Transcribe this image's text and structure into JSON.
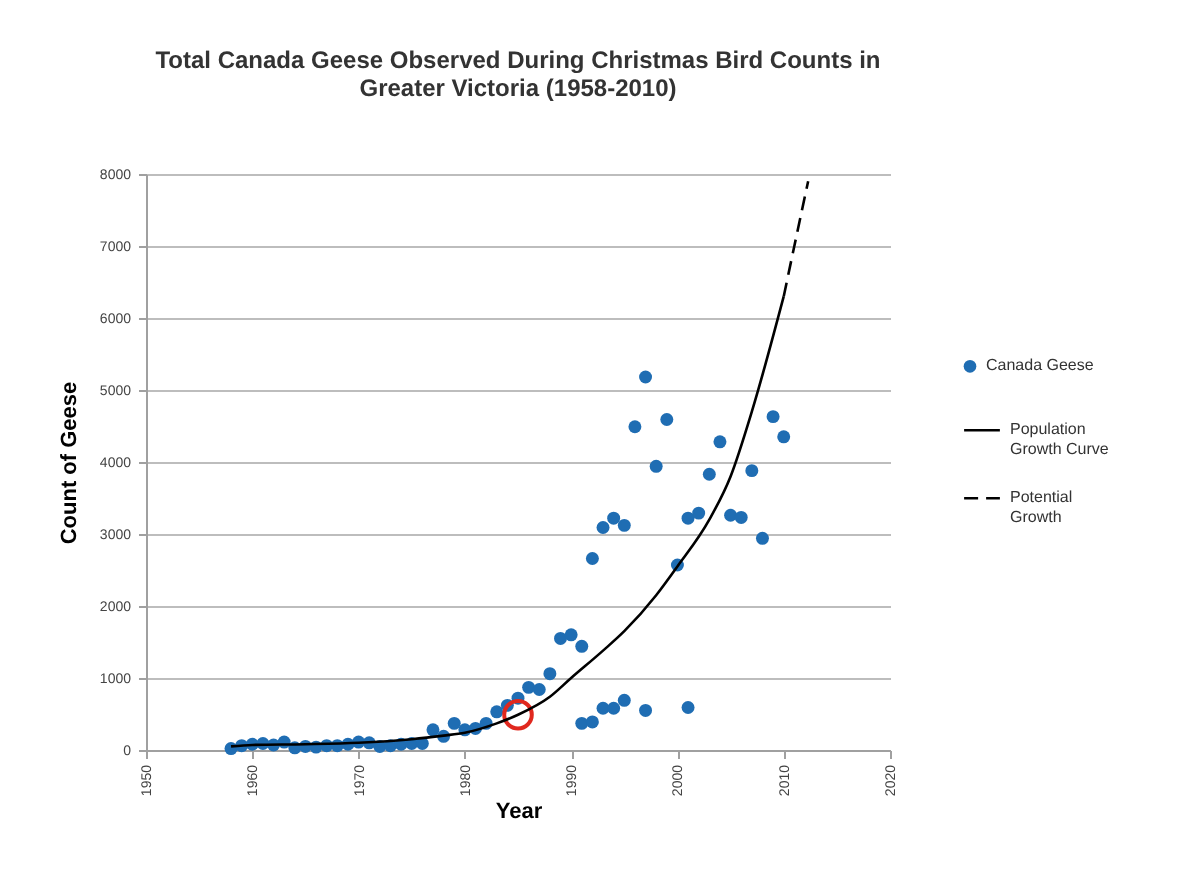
{
  "chart_data": {
    "type": "scatter",
    "title": "Total Canada Geese Observed During Christmas Bird Counts in Greater Victoria (1958-2010)",
    "xlabel": "Year",
    "ylabel": "Count of Geese",
    "xlim": [
      1950,
      2020
    ],
    "xticks": [
      1950,
      1960,
      1970,
      1980,
      1990,
      2000,
      2010,
      2020
    ],
    "ylim": [
      0,
      8000
    ],
    "yticks": [
      0,
      1000,
      2000,
      3000,
      4000,
      5000,
      6000,
      7000,
      8000
    ],
    "grid": "y",
    "legend": "right",
    "series": [
      {
        "name": "Canada Geese",
        "marker": "circle",
        "color": "#1f6db3",
        "x": [
          1958,
          1959,
          1960,
          1961,
          1962,
          1963,
          1964,
          1965,
          1966,
          1967,
          1968,
          1969,
          1970,
          1971,
          1972,
          1973,
          1974,
          1975,
          1976,
          1977,
          1978,
          1979,
          1980,
          1981,
          1982,
          1983,
          1984,
          1985,
          1986,
          1987,
          1988,
          1989,
          1990,
          1991,
          1991,
          1992,
          1992,
          1993,
          1993,
          1994,
          1994,
          1995,
          1995,
          1996,
          1997,
          1997,
          1998,
          1999,
          2000,
          2001,
          2001,
          2002,
          2003,
          2004,
          2005,
          2006,
          2007,
          2008,
          2009,
          2010
        ],
        "values": [
          20,
          60,
          80,
          90,
          70,
          110,
          30,
          50,
          40,
          60,
          60,
          80,
          110,
          100,
          50,
          60,
          80,
          90,
          90,
          280,
          190,
          370,
          280,
          300,
          370,
          530,
          620,
          720,
          870,
          840,
          1060,
          1550,
          1600,
          1440,
          370,
          2660,
          390,
          3090,
          580,
          3220,
          580,
          3120,
          690,
          4490,
          5180,
          550,
          3940,
          4590,
          2570,
          3220,
          590,
          3290,
          3830,
          4280,
          3260,
          3230,
          3880,
          2940,
          4630,
          4350
        ]
      },
      {
        "name": "Population Growth Curve",
        "type": "line",
        "line_style": "solid",
        "color": "#000000",
        "x": [
          1958,
          1960,
          1965,
          1970,
          1975,
          1978,
          1980,
          1983,
          1985,
          1988,
          1990,
          1993,
          1995,
          1998,
          2000,
          2003,
          2005,
          2007,
          2010
        ],
        "values": [
          50,
          70,
          80,
          100,
          150,
          200,
          240,
          370,
          490,
          740,
          1000,
          1380,
          1650,
          2150,
          2550,
          3200,
          3800,
          4700,
          6300
        ]
      },
      {
        "name": "Potential Growth",
        "type": "line",
        "line_style": "dashed",
        "color": "#000000",
        "x": [
          2010,
          2011,
          2012.3
        ],
        "values": [
          6300,
          7000,
          7900
        ]
      },
      {
        "type": "scatter",
        "marker": "circle",
        "color": "#e0281e",
        "x": [
          1985
        ],
        "values": [
          490
        ]
      }
    ]
  }
}
